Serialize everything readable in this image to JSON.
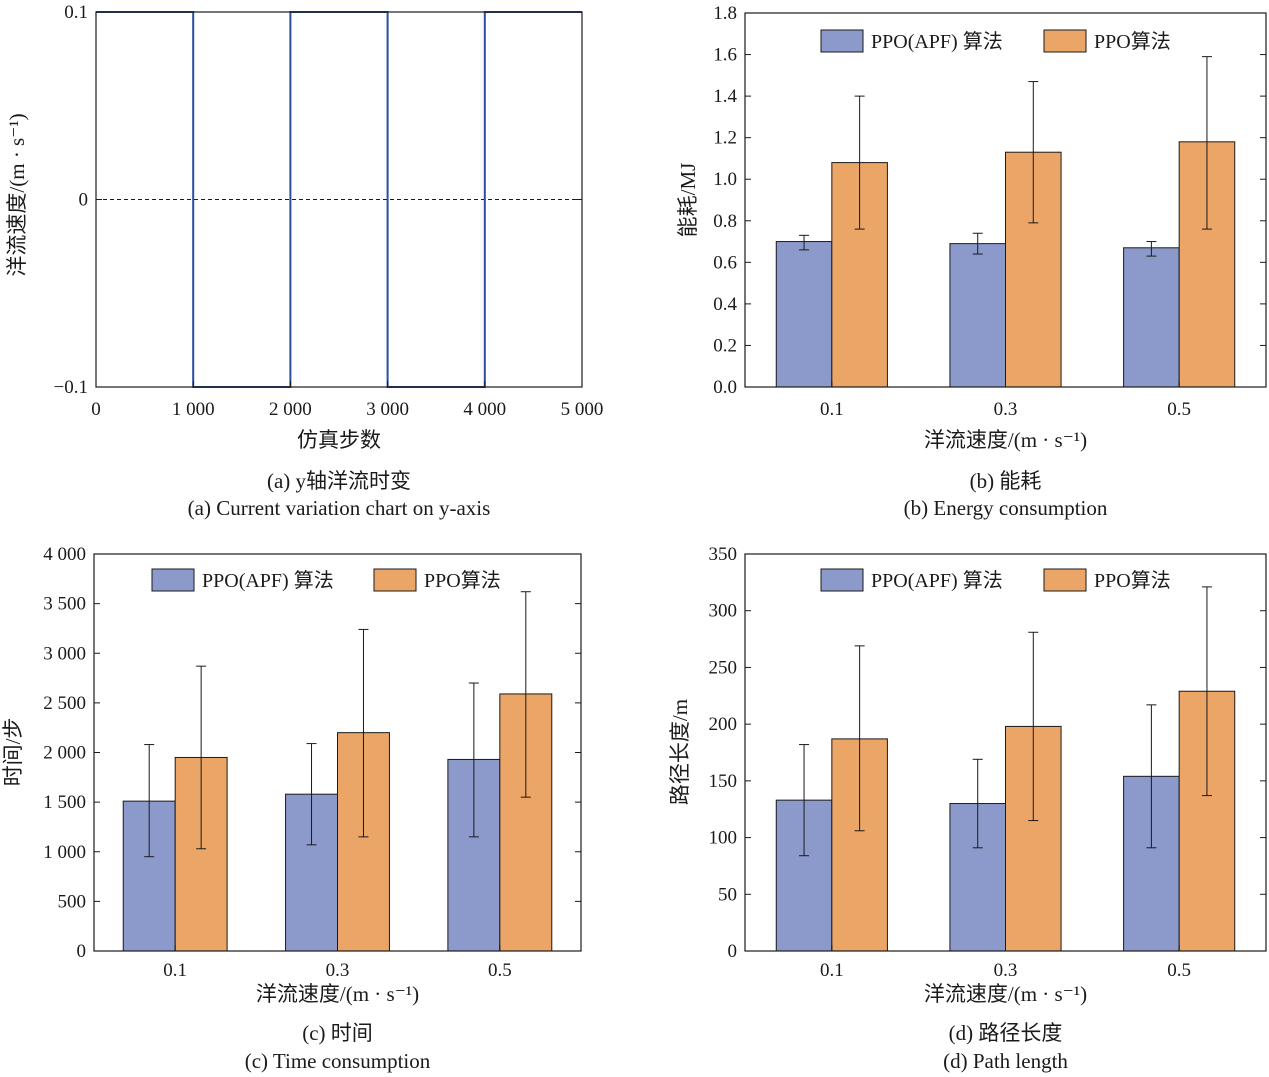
{
  "colors": {
    "ppo_apf": "#8c9acb",
    "ppo": "#eba566",
    "current_line": "#2b4ea0",
    "axis": "#1a1a1a"
  },
  "chart_data": [
    {
      "id": "a",
      "type": "line",
      "x": [
        0,
        1000,
        1000,
        2000,
        2000,
        3000,
        3000,
        4000,
        4000,
        5000
      ],
      "y": [
        0.1,
        0.1,
        -0.1,
        -0.1,
        0.1,
        0.1,
        -0.1,
        -0.1,
        0.1,
        0.1
      ],
      "xticks": [
        0,
        1000,
        2000,
        3000,
        4000,
        5000
      ],
      "xtick_labels": [
        "0",
        "1 000",
        "2 000",
        "3 000",
        "4 000",
        "5 000"
      ],
      "yticks": [
        -0.1,
        0,
        0.1
      ],
      "ytick_labels": [
        "−0.1",
        "0",
        "0.1"
      ],
      "xlim": [
        0,
        5000
      ],
      "ylim": [
        -0.1,
        0.1
      ],
      "reference_line": {
        "y": 0,
        "style": "dashed"
      },
      "xlabel": "仿真步数",
      "ylabel": "洋流速度/(m · s⁻¹)",
      "caption_cn": "(a) y轴洋流时变",
      "caption_en": "(a) Current variation chart on y-axis"
    },
    {
      "id": "b",
      "type": "bar",
      "categories": [
        "0.1",
        "0.3",
        "0.5"
      ],
      "series": [
        {
          "name": "PPO(APF) 算法",
          "values": [
            0.7,
            0.69,
            0.67
          ],
          "err_low": [
            0.66,
            0.64,
            0.63
          ],
          "err_high": [
            0.73,
            0.74,
            0.7
          ]
        },
        {
          "name": "PPO算法",
          "values": [
            1.08,
            1.13,
            1.18
          ],
          "err_low": [
            0.76,
            0.79,
            0.76
          ],
          "err_high": [
            1.4,
            1.47,
            1.59
          ]
        }
      ],
      "ylim": [
        0,
        1.8
      ],
      "yticks": [
        0,
        0.2,
        0.4,
        0.6,
        0.8,
        1.0,
        1.2,
        1.4,
        1.6,
        1.8
      ],
      "ytick_labels": [
        "0.0",
        "0.2",
        "0.4",
        "0.6",
        "0.8",
        "1.0",
        "1.2",
        "1.4",
        "1.6",
        "1.8"
      ],
      "xlabel": "洋流速度/(m · s⁻¹)",
      "ylabel": "能耗/MJ",
      "legend": "top",
      "caption_cn": "(b) 能耗",
      "caption_en": "(b) Energy consumption"
    },
    {
      "id": "c",
      "type": "bar",
      "categories": [
        "0.1",
        "0.3",
        "0.5"
      ],
      "series": [
        {
          "name": "PPO(APF) 算法",
          "values": [
            1510,
            1580,
            1930
          ],
          "err_low": [
            950,
            1070,
            1150
          ],
          "err_high": [
            2080,
            2090,
            2700
          ]
        },
        {
          "name": "PPO算法",
          "values": [
            1950,
            2200,
            2590
          ],
          "err_low": [
            1030,
            1150,
            1550
          ],
          "err_high": [
            2870,
            3240,
            3620
          ]
        }
      ],
      "ylim": [
        0,
        4000
      ],
      "yticks": [
        0,
        500,
        1000,
        1500,
        2000,
        2500,
        3000,
        3500,
        4000
      ],
      "ytick_labels": [
        "0",
        "500",
        "1 000",
        "1 500",
        "2 000",
        "2 500",
        "3 000",
        "3 500",
        "4 000"
      ],
      "xlabel": "洋流速度/(m · s⁻¹)",
      "ylabel": "时间/步",
      "legend": "top",
      "caption_cn": "(c) 时间",
      "caption_en": "(c) Time consumption"
    },
    {
      "id": "d",
      "type": "bar",
      "categories": [
        "0.1",
        "0.3",
        "0.5"
      ],
      "series": [
        {
          "name": "PPO(APF) 算法",
          "values": [
            133,
            130,
            154
          ],
          "err_low": [
            84,
            91,
            91
          ],
          "err_high": [
            182,
            169,
            217
          ]
        },
        {
          "name": "PPO算法",
          "values": [
            187,
            198,
            229
          ],
          "err_low": [
            106,
            115,
            137
          ],
          "err_high": [
            269,
            281,
            321
          ]
        }
      ],
      "ylim": [
        0,
        350
      ],
      "yticks": [
        0,
        50,
        100,
        150,
        200,
        250,
        300,
        350
      ],
      "ytick_labels": [
        "0",
        "50",
        "100",
        "150",
        "200",
        "250",
        "300",
        "350"
      ],
      "xlabel": "洋流速度/(m · s⁻¹)",
      "ylabel": "路径长度/m",
      "legend": "top",
      "caption_cn": "(d) 路径长度",
      "caption_en": "(d) Path length"
    }
  ]
}
